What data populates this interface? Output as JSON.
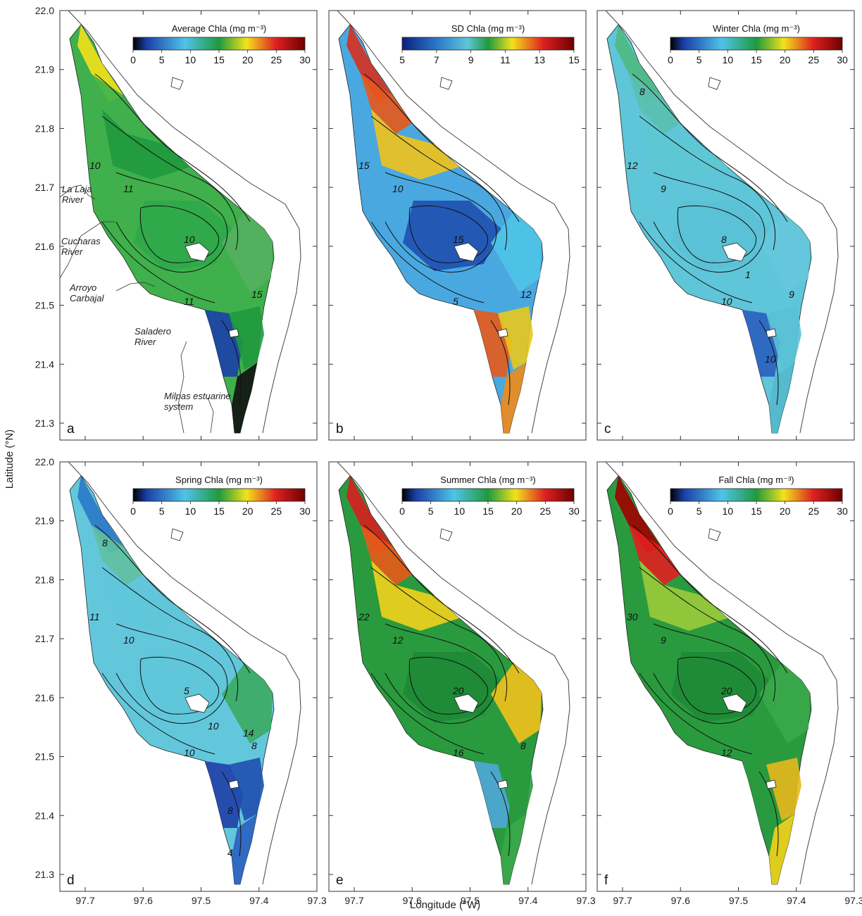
{
  "axes": {
    "xlabel": "Longitude (°W)",
    "ylabel": "Latitude (°N)",
    "lat_ticks": [
      "22.0",
      "21.9",
      "21.8",
      "21.7",
      "21.6",
      "21.5",
      "21.4",
      "21.3"
    ],
    "lon_ticks": [
      "97.7",
      "97.6",
      "97.5",
      "97.4",
      "97.3"
    ]
  },
  "colors": {
    "jet": [
      "#000000",
      "#1b3fa8",
      "#4fc3e8",
      "#1f9a3e",
      "#f2e21c",
      "#e02020",
      "#6e0000"
    ],
    "land_line": "#444444",
    "contour": "#111111"
  },
  "panels": [
    {
      "letter": "a",
      "cb_title": "Average Chla (mg m⁻³)",
      "cb_ticks": [
        "0",
        "5",
        "10",
        "15",
        "20",
        "25",
        "30"
      ],
      "zones": [
        "#f2e21c",
        "#3fb04b",
        "#1f9a3e",
        "#3fb04b",
        "#2fa84a",
        "#54b060",
        "#1b3fa8",
        "#1f9a3e",
        "#111111"
      ],
      "contour_labels": [
        "10",
        "10",
        "11",
        "11",
        "15"
      ],
      "rivers": [
        "La Laja River",
        "Cucharas River",
        "Arroyo Carbajal",
        "Saladero River",
        "Milpas estuarine system"
      ]
    },
    {
      "letter": "b",
      "cb_title": "SD Chla (mg m⁻³)",
      "cb_ticks": [
        "5",
        "7",
        "9",
        "11",
        "13",
        "15"
      ],
      "zones": [
        "#d7301f",
        "#e8581a",
        "#f2c21c",
        "#4aa8e0",
        "#1f4fb0",
        "#4fc3e8",
        "#e85a1a",
        "#e8c81c",
        "#f08a1a"
      ],
      "contour_labels": [
        "15",
        "15",
        "5",
        "10",
        "12"
      ],
      "rivers": []
    },
    {
      "letter": "c",
      "cb_title": "Winter Chla (mg m⁻³)",
      "cb_ticks": [
        "0",
        "5",
        "10",
        "15",
        "20",
        "25",
        "30"
      ],
      "zones": [
        "#4fb880",
        "#5bbfb0",
        "#5ec6d4",
        "#5fc5d8",
        "#5bc0d6",
        "#66c6dc",
        "#2a5fc0",
        "#5bc0d6",
        "#54b8cc"
      ],
      "contour_labels": [
        "12",
        "8",
        "10",
        "9",
        "9",
        "8",
        "10",
        "1"
      ],
      "rivers": []
    },
    {
      "letter": "d",
      "cb_title": "Spring Chla (mg m⁻³)",
      "cb_ticks": [
        "0",
        "5",
        "10",
        "15",
        "20",
        "25",
        "30"
      ],
      "zones": [
        "#2a78c8",
        "#5fc0a0",
        "#5fc5d8",
        "#63c7dc",
        "#5fc5d8",
        "#3aaa60",
        "#1f3fa8",
        "#1f4fb0",
        "#2a5fc0"
      ],
      "contour_labels": [
        "11",
        "5",
        "10",
        "10",
        "8",
        "8",
        "8",
        "10",
        "14",
        "4"
      ],
      "rivers": []
    },
    {
      "letter": "e",
      "cb_title": "Summer Chla (mg m⁻³)",
      "cb_ticks": [
        "0",
        "5",
        "10",
        "15",
        "20",
        "25",
        "30"
      ],
      "zones": [
        "#d71f1f",
        "#e85a1a",
        "#f2d21c",
        "#2a9a3e",
        "#1e8a36",
        "#f2c21c",
        "#4fa8d8",
        "#2a9a3e",
        "#3aa84a"
      ],
      "contour_labels": [
        "22",
        "20",
        "16",
        "12",
        "8"
      ],
      "rivers": []
    },
    {
      "letter": "f",
      "cb_title": "Fall Chla (mg m⁻³)",
      "cb_ticks": [
        "0",
        "5",
        "10",
        "15",
        "20",
        "25",
        "30"
      ],
      "zones": [
        "#a00000",
        "#e02020",
        "#9acb3a",
        "#2a9a3e",
        "#1e8a36",
        "#3aa84a",
        "#2a9a3e",
        "#e8b81c",
        "#f2d21c"
      ],
      "contour_labels": [
        "30",
        "20",
        "12",
        "9"
      ],
      "rivers": []
    }
  ]
}
